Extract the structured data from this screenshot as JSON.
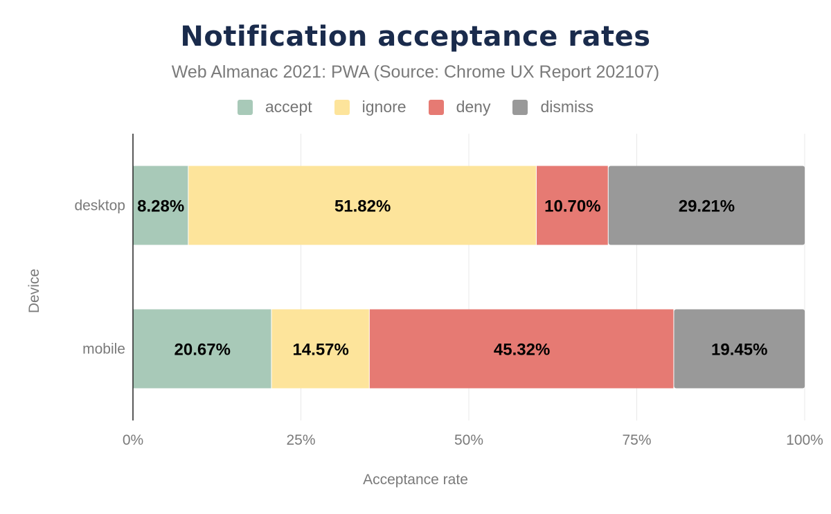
{
  "chart_data": {
    "type": "bar",
    "orientation": "horizontal",
    "stacked": true,
    "title": "Notification acceptance rates",
    "subtitle": "Web Almanac 2021: PWA (Source: Chrome UX Report 202107)",
    "xlabel": "Acceptance rate",
    "ylabel": "Device",
    "xlim": [
      0,
      100
    ],
    "x_ticks": [
      "0%",
      "25%",
      "50%",
      "75%",
      "100%"
    ],
    "grid": true,
    "legend_position": "top",
    "categories": [
      "desktop",
      "mobile"
    ],
    "series": [
      {
        "name": "accept",
        "color": "#a8c9b8",
        "values": [
          8.28,
          20.67
        ],
        "labels": [
          "8.28%",
          "20.67%"
        ]
      },
      {
        "name": "ignore",
        "color": "#fde49b",
        "values": [
          51.82,
          14.57
        ],
        "labels": [
          "51.82%",
          "14.57%"
        ]
      },
      {
        "name": "deny",
        "color": "#e67a73",
        "values": [
          10.7,
          45.32
        ],
        "labels": [
          "10.70%",
          "45.32%"
        ]
      },
      {
        "name": "dismiss",
        "color": "#999999",
        "values": [
          29.21,
          19.45
        ],
        "labels": [
          "29.21%",
          "19.45%"
        ]
      }
    ]
  }
}
